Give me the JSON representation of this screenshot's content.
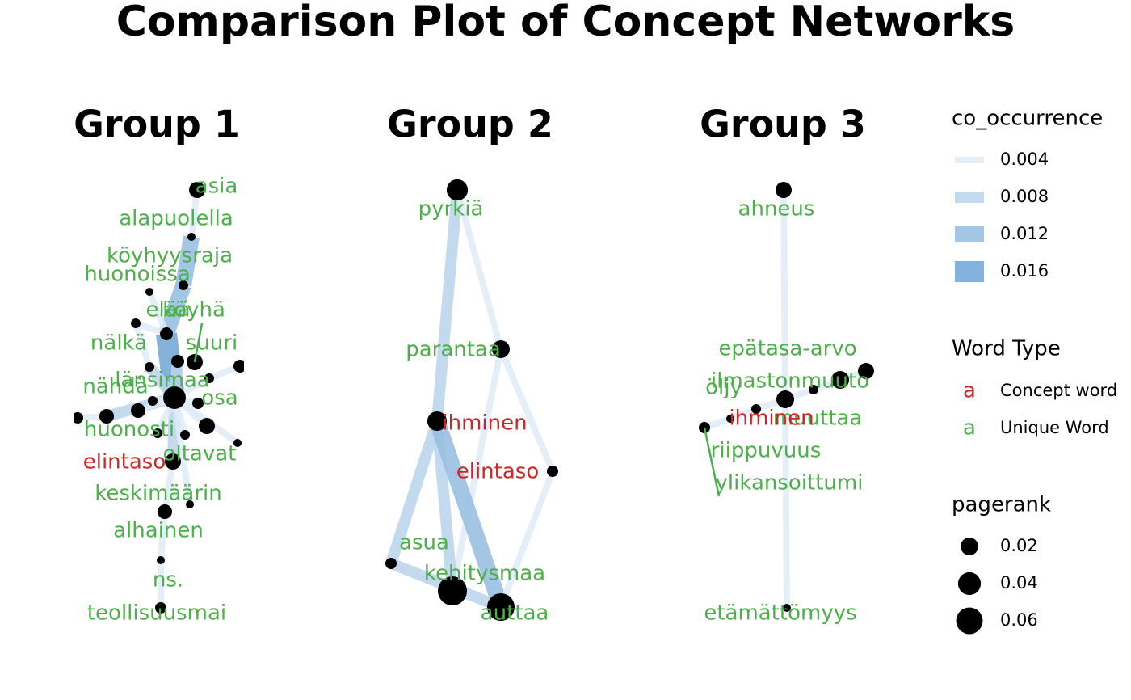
{
  "chart_data": {
    "type": "network",
    "title": "Comparison Plot of Concept Networks",
    "panels": [
      {
        "title": "Group 1",
        "nodes": [
          {
            "label": "asia",
            "word_type": "Unique Word",
            "pagerank": 0.015
          },
          {
            "label": "alapuolella",
            "word_type": "Unique Word",
            "pagerank": 0.0008
          },
          {
            "label": "köyhyysraja",
            "word_type": "Unique Word",
            "pagerank": 0.0022
          },
          {
            "label": "huonoissa",
            "word_type": "Unique Word",
            "pagerank": 0.0008
          },
          {
            "label": "elää",
            "word_type": "Unique Word",
            "pagerank": 0.0072
          },
          {
            "label": "köyhä",
            "word_type": "Unique Word",
            "pagerank": 0.015
          },
          {
            "label": null,
            "pagerank": 0.0022
          },
          {
            "label": "nälkä",
            "word_type": "Unique Word",
            "pagerank": 0.0022
          },
          {
            "label": "suuri",
            "word_type": "Unique Word",
            "pagerank": 0.0072
          },
          {
            "label": "länsimaa",
            "word_type": "Unique Word",
            "pagerank": 0.039
          },
          {
            "label": null,
            "pagerank": 0.0072
          },
          {
            "label": null,
            "pagerank": 0.0022
          },
          {
            "label": "nähdä",
            "word_type": "Unique Word",
            "pagerank": 0.0022
          },
          {
            "label": "osa",
            "word_type": "Unique Word",
            "pagerank": 0.0044
          },
          {
            "label": null,
            "pagerank": 0.0108
          },
          {
            "label": null,
            "pagerank": 0.0108
          },
          {
            "label": null,
            "pagerank": 0.0044
          },
          {
            "label": null,
            "pagerank": 0.015
          },
          {
            "label": "huonosti",
            "word_type": "Unique Word",
            "pagerank": 0.0022
          },
          {
            "label": "oltavat",
            "word_type": "Unique Word",
            "pagerank": 0.0022
          },
          {
            "label": null,
            "pagerank": 0.0008
          },
          {
            "label": "elintaso",
            "word_type": "Concept word",
            "pagerank": 0.015
          },
          {
            "label": "keskimäärin",
            "word_type": "Unique Word",
            "pagerank": 0.0008
          },
          {
            "label": "alhainen",
            "word_type": "Unique Word",
            "pagerank": 0.0108
          },
          {
            "label": "ns.",
            "word_type": "Unique Word",
            "pagerank": 0.0008
          },
          {
            "label": "teollisuusmai",
            "word_type": "Unique Word",
            "pagerank": 0.0044
          }
        ],
        "edges": [
          {
            "from": 9,
            "to": 4,
            "co_occurrence": 0.016
          },
          {
            "from": 4,
            "to": 2,
            "co_occurrence": 0.012
          },
          {
            "from": 2,
            "to": 1,
            "co_occurrence": 0.012
          },
          {
            "from": 1,
            "to": 0,
            "co_occurrence": 0.004
          },
          {
            "from": 9,
            "to": 21,
            "co_occurrence": 0.008
          },
          {
            "from": 21,
            "to": 23,
            "co_occurrence": 0.004
          },
          {
            "from": 23,
            "to": 24,
            "co_occurrence": 0.004
          },
          {
            "from": 24,
            "to": 25,
            "co_occurrence": 0.004
          },
          {
            "from": 9,
            "to": 15,
            "co_occurrence": 0.008
          },
          {
            "from": 15,
            "to": 16,
            "co_occurrence": 0.004
          },
          {
            "from": 9,
            "to": 14,
            "co_occurrence": 0.004
          },
          {
            "from": 9,
            "to": 12,
            "co_occurrence": 0.004
          },
          {
            "from": 9,
            "to": 13,
            "co_occurrence": 0.004
          },
          {
            "from": 9,
            "to": 17,
            "co_occurrence": 0.004
          },
          {
            "from": 9,
            "to": 11,
            "co_occurrence": 0.004
          },
          {
            "from": 11,
            "to": 8,
            "co_occurrence": 0.004
          },
          {
            "from": 9,
            "to": 10,
            "co_occurrence": 0.008
          },
          {
            "from": 4,
            "to": 6,
            "co_occurrence": 0.004
          },
          {
            "from": 4,
            "to": 3,
            "co_occurrence": 0.004
          },
          {
            "from": 6,
            "to": 7,
            "co_occurrence": 0.004
          },
          {
            "from": 9,
            "to": 18,
            "co_occurrence": 0.004
          },
          {
            "from": 9,
            "to": 19,
            "co_occurrence": 0.004
          },
          {
            "from": 9,
            "to": 20,
            "co_occurrence": 0.004
          },
          {
            "from": 9,
            "to": 22,
            "co_occurrence": 0.004
          },
          {
            "from": 7,
            "to": 9,
            "co_occurrence": 0.008
          }
        ]
      },
      {
        "title": "Group 2",
        "nodes": [
          {
            "label": "pyrkiä",
            "word_type": "Unique Word",
            "pagerank": 0.033
          },
          {
            "label": "parantaa",
            "word_type": "Unique Word",
            "pagerank": 0.02
          },
          {
            "label": "ihminen",
            "word_type": "Concept word",
            "pagerank": 0.026
          },
          {
            "label": "elintaso",
            "word_type": "Concept word",
            "pagerank": 0.0044
          },
          {
            "label": "asua",
            "word_type": "Unique Word",
            "pagerank": 0.0044
          },
          {
            "label": "kehitysmaa",
            "word_type": "Unique Word",
            "pagerank": 0.075
          },
          {
            "label": "auttaa",
            "word_type": "Unique Word",
            "pagerank": 0.065
          }
        ],
        "edges": [
          {
            "from": 0,
            "to": 2,
            "co_occurrence": 0.008
          },
          {
            "from": 0,
            "to": 1,
            "co_occurrence": 0.004
          },
          {
            "from": 1,
            "to": 3,
            "co_occurrence": 0.004
          },
          {
            "from": 1,
            "to": 5,
            "co_occurrence": 0.004
          },
          {
            "from": 2,
            "to": 4,
            "co_occurrence": 0.008
          },
          {
            "from": 2,
            "to": 5,
            "co_occurrence": 0.008
          },
          {
            "from": 2,
            "to": 6,
            "co_occurrence": 0.012
          },
          {
            "from": 4,
            "to": 6,
            "co_occurrence": 0.008
          },
          {
            "from": 3,
            "to": 6,
            "co_occurrence": 0.004
          }
        ]
      },
      {
        "title": "Group 3",
        "nodes": [
          {
            "label": "ahneus",
            "word_type": "Unique Word",
            "pagerank": 0.015
          },
          {
            "label": "epätasa-arvo",
            "word_type": "Unique Word",
            "pagerank": 0.02
          },
          {
            "label": "ilmastonmuuto",
            "word_type": "Unique Word",
            "pagerank": 0.02
          },
          {
            "label": "öljy",
            "word_type": "Unique Word",
            "pagerank": 0.015
          },
          {
            "label": "muuttaa",
            "word_type": "Unique Word",
            "pagerank": 0.0022
          },
          {
            "label": "ihminen",
            "word_type": "Concept word",
            "pagerank": 0.0022
          },
          {
            "label": "riippuvuus",
            "word_type": "Unique Word",
            "pagerank": 0.0008
          },
          {
            "label": "ylikansoittumi",
            "word_type": "Unique Word",
            "pagerank": 0.0044
          },
          {
            "label": "etämättömyys",
            "word_type": "Unique Word",
            "pagerank": 0.0008
          }
        ],
        "edges": [
          {
            "from": 0,
            "to": 1,
            "co_occurrence": 0.004
          },
          {
            "from": 1,
            "to": 8,
            "co_occurrence": 0.004
          },
          {
            "from": 1,
            "to": 5,
            "co_occurrence": 0.004
          },
          {
            "from": 5,
            "to": 6,
            "co_occurrence": 0.004
          },
          {
            "from": 6,
            "to": 7,
            "co_occurrence": 0.004
          },
          {
            "from": 1,
            "to": 4,
            "co_occurrence": 0.004
          },
          {
            "from": 4,
            "to": 2,
            "co_occurrence": 0.004
          },
          {
            "from": 2,
            "to": 3,
            "co_occurrence": 0.004
          }
        ]
      }
    ],
    "legends": {
      "edge": {
        "title": "co_occurrence",
        "values": [
          0.004,
          0.008,
          0.012,
          0.016
        ],
        "colors": [
          "#deebf7",
          "#6fa5d4"
        ]
      },
      "word_type": {
        "title": "Word Type",
        "key_text": "a",
        "entries": [
          {
            "name": "Concept word",
            "color": "#cd2626"
          },
          {
            "name": "Unique Word",
            "color": "#4daf4a"
          }
        ]
      },
      "size": {
        "title": "pagerank",
        "values": [
          0.02,
          0.04,
          0.06
        ],
        "color": "#000000"
      }
    }
  }
}
